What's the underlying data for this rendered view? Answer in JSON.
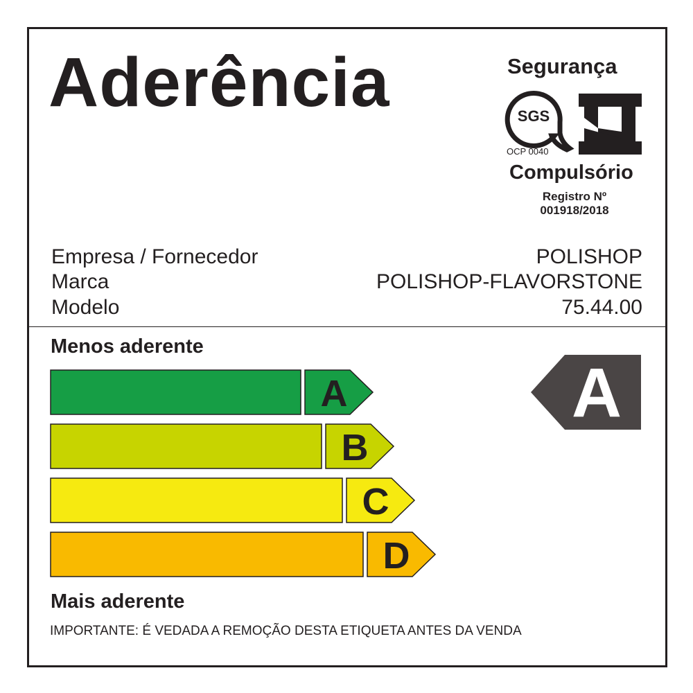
{
  "title": "Aderência",
  "certification": {
    "header": "Segurança",
    "sgs_logo": "SGS",
    "ocp": "OCP 0040",
    "inmetro_logo": "inmetro-icon",
    "type": "Compulsório",
    "registry_label": "Registro Nº",
    "registry_number": "001918/2018"
  },
  "info": [
    {
      "label": "Empresa / Fornecedor",
      "value": "POLISHOP"
    },
    {
      "label": "Marca",
      "value": "POLISHOP-FLAVORSTONE"
    },
    {
      "label": "Modelo",
      "value": "75.44.00"
    }
  ],
  "scale": {
    "top_label": "Menos aderente",
    "bottom_label": "Mais aderente",
    "classes": [
      {
        "letter": "A",
        "color": "#169e45"
      },
      {
        "letter": "B",
        "color": "#c7d400"
      },
      {
        "letter": "C",
        "color": "#f6ea10"
      },
      {
        "letter": "D",
        "color": "#f9ba00"
      }
    ],
    "rating": "A",
    "rating_color": "#4a4545"
  },
  "notice": "IMPORTANTE: É VEDADA A REMOÇÃO DESTA ETIQUETA ANTES DA VENDA"
}
